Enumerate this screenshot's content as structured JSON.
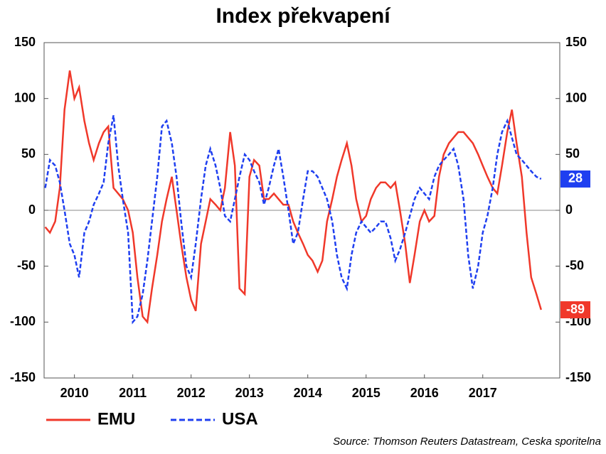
{
  "chart_data": {
    "type": "line",
    "title": "Index překvapení",
    "source": "Source: Thomson Reuters Datastream, Ceska sporitelna",
    "x": [
      2010,
      2010.08,
      2010.17,
      2010.25,
      2010.33,
      2010.42,
      2010.5,
      2010.58,
      2010.67,
      2010.75,
      2010.83,
      2010.92,
      2011,
      2011.08,
      2011.17,
      2011.25,
      2011.33,
      2011.42,
      2011.5,
      2011.58,
      2011.67,
      2011.75,
      2011.83,
      2011.92,
      2012,
      2012.08,
      2012.17,
      2012.25,
      2012.33,
      2012.42,
      2012.5,
      2012.58,
      2012.67,
      2012.75,
      2012.83,
      2012.92,
      2013,
      2013.08,
      2013.17,
      2013.25,
      2013.33,
      2013.42,
      2013.5,
      2013.58,
      2013.67,
      2013.75,
      2013.83,
      2013.92,
      2014,
      2014.08,
      2014.17,
      2014.25,
      2014.33,
      2014.42,
      2014.5,
      2014.58,
      2014.67,
      2014.75,
      2014.83,
      2014.92,
      2015,
      2015.08,
      2015.17,
      2015.25,
      2015.33,
      2015.42,
      2015.5,
      2015.58,
      2015.67,
      2015.75,
      2015.83,
      2015.92,
      2016,
      2016.08,
      2016.17,
      2016.25,
      2016.33,
      2016.42,
      2016.5,
      2016.58,
      2016.67,
      2016.75,
      2016.83,
      2016.92,
      2017,
      2017.08,
      2017.17,
      2017.25,
      2017.33,
      2017.42,
      2017.5,
      2017.58,
      2017.67,
      2017.75,
      2017.83,
      2017.92,
      2018,
      2018.08,
      2018.17,
      2018.25,
      2018.33,
      2018.42,
      2018.5
    ],
    "series": [
      {
        "name": "EMU",
        "color": "#f0382a",
        "style": "solid",
        "values": [
          -15,
          -20,
          -10,
          20,
          90,
          125,
          100,
          110,
          80,
          60,
          45,
          60,
          70,
          75,
          20,
          15,
          10,
          0,
          -20,
          -60,
          -95,
          -100,
          -70,
          -40,
          -10,
          10,
          30,
          0,
          -30,
          -60,
          -80,
          -90,
          -30,
          -10,
          10,
          5,
          0,
          20,
          70,
          40,
          -70,
          -75,
          30,
          45,
          40,
          10,
          10,
          15,
          10,
          5,
          5,
          -10,
          -20,
          -30,
          -40,
          -45,
          -55,
          -45,
          -10,
          10,
          30,
          45,
          60,
          40,
          10,
          -10,
          -5,
          10,
          20,
          25,
          25,
          20,
          25,
          0,
          -30,
          -65,
          -40,
          -10,
          0,
          -10,
          -5,
          30,
          50,
          60,
          65,
          70,
          70,
          65,
          60,
          50,
          40,
          30,
          20,
          15,
          40,
          70,
          90,
          60,
          30,
          -20,
          -60,
          -75,
          -89
        ]
      },
      {
        "name": "USA",
        "color": "#1f3ff0",
        "style": "dashed",
        "values": [
          20,
          45,
          40,
          25,
          0,
          -30,
          -40,
          -60,
          -20,
          -10,
          5,
          15,
          25,
          60,
          85,
          40,
          10,
          -20,
          -100,
          -95,
          -75,
          -45,
          -10,
          30,
          75,
          80,
          60,
          30,
          -10,
          -50,
          -60,
          -30,
          10,
          40,
          55,
          40,
          20,
          -5,
          -10,
          10,
          30,
          50,
          45,
          35,
          25,
          5,
          20,
          40,
          55,
          30,
          0,
          -30,
          -20,
          10,
          35,
          35,
          30,
          20,
          10,
          -10,
          -40,
          -60,
          -70,
          -40,
          -20,
          -10,
          -15,
          -20,
          -15,
          -10,
          -10,
          -25,
          -45,
          -35,
          -20,
          -5,
          10,
          20,
          15,
          10,
          30,
          40,
          45,
          50,
          55,
          40,
          10,
          -40,
          -70,
          -50,
          -20,
          -5,
          20,
          50,
          70,
          80,
          65,
          50,
          45,
          40,
          35,
          30,
          28
        ]
      }
    ],
    "xlim": [
      2009.98,
      2018.82
    ],
    "xticks": [
      {
        "value": 2010.5,
        "label": "2010"
      },
      {
        "value": 2011.5,
        "label": "2011"
      },
      {
        "value": 2012.5,
        "label": "2012"
      },
      {
        "value": 2013.5,
        "label": "2013"
      },
      {
        "value": 2014.5,
        "label": "2014"
      },
      {
        "value": 2015.5,
        "label": "2015"
      },
      {
        "value": 2016.5,
        "label": "2016"
      },
      {
        "value": 2017.5,
        "label": "2017"
      }
    ],
    "ylim": [
      -150,
      150
    ],
    "yticks": [
      -150,
      -100,
      -50,
      0,
      50,
      100,
      150
    ],
    "y2lim": [
      -150,
      150
    ],
    "y2ticks": [
      -150,
      -100,
      -50,
      0,
      50,
      100,
      150
    ],
    "zero_line": true,
    "end_labels": true
  }
}
